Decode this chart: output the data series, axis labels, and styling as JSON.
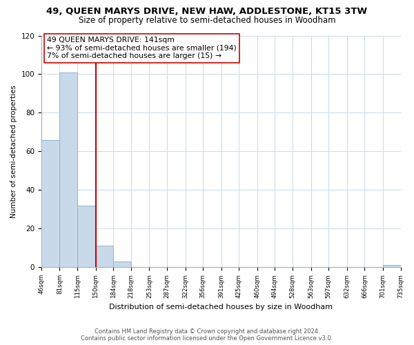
{
  "title": "49, QUEEN MARYS DRIVE, NEW HAW, ADDLESTONE, KT15 3TW",
  "subtitle": "Size of property relative to semi-detached houses in Woodham",
  "xlabel": "Distribution of semi-detached houses by size in Woodham",
  "ylabel": "Number of semi-detached properties",
  "bin_edges": [
    46,
    81,
    115,
    150,
    184,
    218,
    253,
    287,
    322,
    356,
    391,
    425,
    460,
    494,
    528,
    563,
    597,
    632,
    666,
    701,
    735
  ],
  "bar_heights": [
    66,
    101,
    32,
    11,
    3,
    0,
    0,
    0,
    0,
    0,
    0,
    0,
    0,
    0,
    0,
    0,
    0,
    0,
    0,
    1
  ],
  "property_line_x": 150,
  "bar_color": "#c8d9ea",
  "bar_edge_color": "#90b4cf",
  "line_color": "#cc0000",
  "annotation_line1": "49 QUEEN MARYS DRIVE: 141sqm",
  "annotation_line2": "← 93% of semi-detached houses are smaller (194)",
  "annotation_line3": "7% of semi-detached houses are larger (15) →",
  "ylim": [
    0,
    120
  ],
  "yticks": [
    0,
    20,
    40,
    60,
    80,
    100,
    120
  ],
  "footer1": "Contains HM Land Registry data © Crown copyright and database right 2024.",
  "footer2": "Contains public sector information licensed under the Open Government Licence v3.0.",
  "grid_color": "#ccdde8",
  "title_fontsize": 9.5,
  "subtitle_fontsize": 8.5
}
